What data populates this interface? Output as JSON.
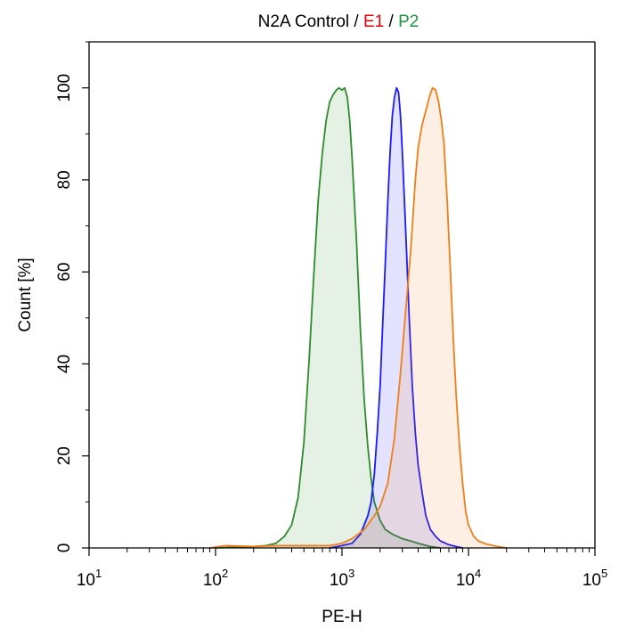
{
  "chart_data": {
    "type": "area",
    "title": {
      "parts": [
        {
          "text": "N2A Control",
          "color": "#000000"
        },
        {
          "text": " / ",
          "color": "#000000"
        },
        {
          "text": "E1",
          "color": "#e8000b"
        },
        {
          "text": " / ",
          "color": "#000000"
        },
        {
          "text": "P2",
          "color": "#1a9641"
        }
      ]
    },
    "xlabel": "PE-H",
    "ylabel": "Count [%]",
    "xscale": "log",
    "xlim": [
      10,
      100000
    ],
    "ylim": [
      0,
      110
    ],
    "x_ticks": [
      {
        "base": "10",
        "exp": "1",
        "value": 10
      },
      {
        "base": "10",
        "exp": "2",
        "value": 100
      },
      {
        "base": "10",
        "exp": "3",
        "value": 1000
      },
      {
        "base": "10",
        "exp": "4",
        "value": 10000
      },
      {
        "base": "10",
        "exp": "5",
        "value": 100000
      }
    ],
    "y_ticks": [
      "0",
      "20",
      "40",
      "60",
      "80",
      "100"
    ],
    "grid": false,
    "series": [
      {
        "color": "#2e8b2e",
        "fill": "#2e8b2e",
        "x": [
          100,
          150,
          200,
          250,
          300,
          350,
          400,
          450,
          500,
          550,
          600,
          650,
          700,
          750,
          800,
          850,
          900,
          950,
          1000,
          1050,
          1100,
          1150,
          1200,
          1300,
          1400,
          1500,
          1600,
          1700,
          1800,
          2000,
          2200,
          2500,
          3000,
          3500,
          4000,
          5000,
          6000
        ],
        "y": [
          0,
          0.2,
          0.3,
          0.5,
          1,
          2.5,
          5,
          11,
          23,
          41,
          60,
          76,
          86,
          93,
          97,
          98.5,
          99.5,
          100,
          99.5,
          100,
          98,
          93,
          85,
          67,
          47,
          32,
          22,
          15,
          10,
          6,
          4,
          3,
          2,
          1.5,
          1,
          0.3,
          0
        ]
      },
      {
        "color": "#1a1aff",
        "fill": "#1a1aff",
        "x": [
          800,
          1000,
          1200,
          1400,
          1600,
          1700,
          1800,
          1900,
          2000,
          2100,
          2200,
          2300,
          2400,
          2500,
          2600,
          2700,
          2800,
          2900,
          3000,
          3200,
          3400,
          3600,
          3800,
          4000,
          4300,
          4600,
          5000,
          5500,
          6000,
          7000,
          8000,
          9000
        ],
        "y": [
          0,
          0.5,
          1,
          3,
          7,
          10,
          16,
          25,
          35,
          49,
          62,
          75,
          86,
          94,
          98,
          100,
          99,
          94,
          86,
          68,
          50,
          35,
          25,
          18,
          12,
          7,
          4,
          2.5,
          1.5,
          0.7,
          0.3,
          0
        ]
      },
      {
        "color": "#ee7f1a",
        "fill": "#ee7f1a",
        "x": [
          90,
          120,
          200,
          300,
          500,
          800,
          1000,
          1200,
          1500,
          1800,
          2000,
          2300,
          2600,
          2900,
          3200,
          3500,
          3800,
          4000,
          4300,
          4600,
          4900,
          5200,
          5500,
          5800,
          6100,
          6400,
          6800,
          7200,
          7600,
          8000,
          8500,
          9000,
          9500,
          10000,
          11000,
          12000,
          14000,
          17000,
          20000
        ],
        "y": [
          0,
          0.5,
          0.3,
          0.5,
          0.5,
          0.5,
          1,
          2,
          4,
          7,
          9,
          14,
          24,
          38,
          52,
          65,
          80,
          87,
          92,
          95,
          98,
          100,
          99.5,
          97,
          93,
          88,
          75,
          60,
          45,
          33,
          22,
          14,
          8,
          5,
          2.5,
          1.5,
          0.8,
          0.3,
          0
        ]
      }
    ]
  }
}
